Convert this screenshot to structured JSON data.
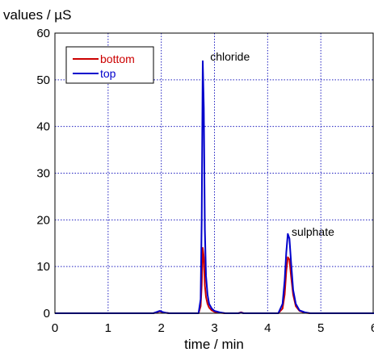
{
  "chart_data": {
    "type": "line",
    "title": "",
    "ylabel": "values / µS",
    "xlabel": "time / min",
    "xlim": [
      0,
      6
    ],
    "ylim": [
      0,
      60
    ],
    "xticks": [
      "0",
      "1",
      "2",
      "3",
      "4",
      "5",
      "6"
    ],
    "yticks": [
      "0",
      "10",
      "20",
      "30",
      "40",
      "50",
      "60"
    ],
    "grid": true,
    "legend_position": "top-left",
    "annotations": [
      {
        "text": "chloride",
        "x": 2.92,
        "y": 55
      },
      {
        "text": "sulphate",
        "x": 4.45,
        "y": 17.5
      }
    ],
    "series": [
      {
        "name": "bottom",
        "color": "#cc0000",
        "x": [
          0,
          1.85,
          1.92,
          1.97,
          2.02,
          2.08,
          2.15,
          2.7,
          2.74,
          2.76,
          2.78,
          2.8,
          2.82,
          2.84,
          2.87,
          2.9,
          2.95,
          3.0,
          3.1,
          3.2,
          3.45,
          3.5,
          3.55,
          4.2,
          4.28,
          4.32,
          4.35,
          4.38,
          4.41,
          4.44,
          4.48,
          4.53,
          4.6,
          4.7,
          4.8,
          6.0
        ],
        "y": [
          0,
          0,
          0.2,
          0.4,
          0.2,
          0.1,
          0,
          0,
          1.5,
          6,
          14,
          12,
          6,
          3.5,
          2,
          1.2,
          0.6,
          0.3,
          0.1,
          0,
          0,
          0.2,
          0,
          0,
          1,
          4,
          9,
          12,
          11.5,
          8,
          4,
          1.5,
          0.5,
          0.1,
          0,
          0
        ]
      },
      {
        "name": "top",
        "color": "#0000cc",
        "x": [
          0,
          1.85,
          1.92,
          1.97,
          2.02,
          2.08,
          2.15,
          2.7,
          2.74,
          2.76,
          2.78,
          2.8,
          2.82,
          2.84,
          2.87,
          2.9,
          2.95,
          3.0,
          3.1,
          3.2,
          3.45,
          3.5,
          3.55,
          4.2,
          4.28,
          4.32,
          4.35,
          4.38,
          4.41,
          4.44,
          4.48,
          4.53,
          4.6,
          4.7,
          4.8,
          6.0
        ],
        "y": [
          0,
          0,
          0.3,
          0.5,
          0.3,
          0.1,
          0,
          0,
          3,
          20,
          54,
          44,
          18,
          8,
          4,
          2,
          1,
          0.5,
          0.2,
          0,
          0,
          0.1,
          0,
          0,
          2,
          7,
          13,
          17,
          16,
          11,
          5,
          2,
          0.6,
          0.2,
          0,
          0
        ]
      }
    ]
  }
}
